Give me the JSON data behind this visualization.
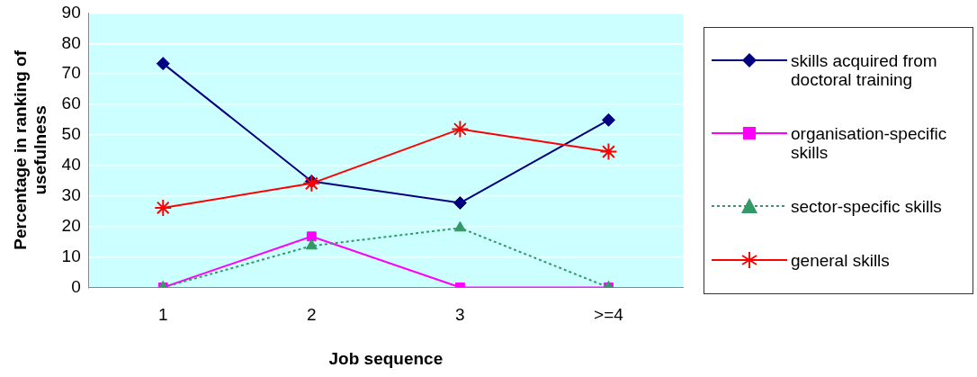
{
  "chart_data": {
    "type": "line",
    "xlabel": "Job sequence",
    "ylabel": "Percentage in ranking of usefulness",
    "categories": [
      "1",
      "2",
      "3",
      ">=4"
    ],
    "series": [
      {
        "name": "skills acquired from doctoral training",
        "color": "#000080",
        "values": [
          73.4,
          34.8,
          27.7,
          54.9
        ],
        "marker": "diamond",
        "line_style": "solid"
      },
      {
        "name": "organisation-specific skills",
        "color": "#ff00ff",
        "values": [
          0,
          16.7,
          0,
          0
        ],
        "marker": "square",
        "line_style": "solid"
      },
      {
        "name": "sector-specific skills",
        "color": "#339966",
        "values": [
          0,
          13.6,
          19.5,
          0
        ],
        "marker": "triangle",
        "line_style": "dotted"
      },
      {
        "name": "general skills",
        "color": "#ff0000",
        "values": [
          26.1,
          34.1,
          51.9,
          44.5
        ],
        "marker": "cross",
        "line_style": "solid"
      }
    ],
    "ylim": [
      0,
      90
    ],
    "yticks": [
      0,
      10,
      20,
      30,
      40,
      50,
      60,
      70,
      80,
      90
    ],
    "grid": "y",
    "legend": "right"
  }
}
